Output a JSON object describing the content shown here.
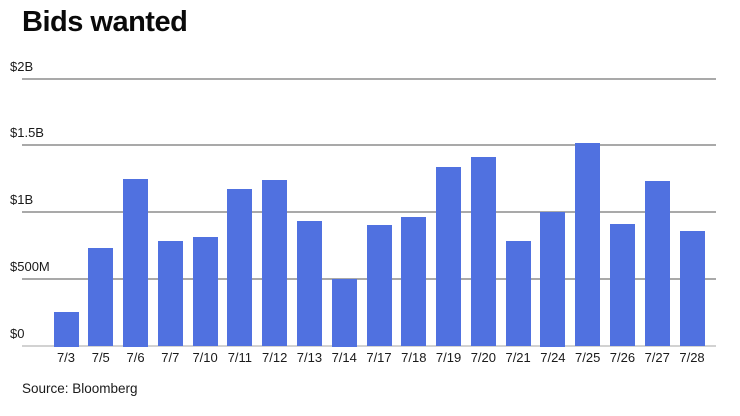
{
  "chart_data": {
    "type": "bar",
    "title": "Bids wanted",
    "source": "Source: Bloomberg",
    "categories": [
      "7/3",
      "7/5",
      "7/6",
      "7/7",
      "7/10",
      "7/11",
      "7/12",
      "7/13",
      "7/14",
      "7/17",
      "7/18",
      "7/19",
      "7/20",
      "7/21",
      "7/24",
      "7/25",
      "7/26",
      "7/27",
      "7/28"
    ],
    "values_usd_millions": [
      250,
      730,
      1250,
      780,
      810,
      1170,
      1240,
      930,
      500,
      900,
      960,
      1340,
      1410,
      780,
      1000,
      1520,
      910,
      1230,
      860
    ],
    "xlabel": "",
    "ylabel": "",
    "y_axis": {
      "range_millions": [
        0,
        2000
      ],
      "ticks": [
        {
          "label": "$0",
          "value": 0
        },
        {
          "label": "$500M",
          "value": 500
        },
        {
          "label": "$1B",
          "value": 1000
        },
        {
          "label": "$1.5B",
          "value": 1500
        },
        {
          "label": "$2B",
          "value": 2000
        }
      ]
    },
    "grid": "horizontal",
    "legend": "none",
    "colors": {
      "bar": "#5071e0",
      "gridline": "#a9a9a9",
      "baseline": "#d2d2d2",
      "text": "#1a1a1a",
      "background": "#ffffff"
    }
  }
}
